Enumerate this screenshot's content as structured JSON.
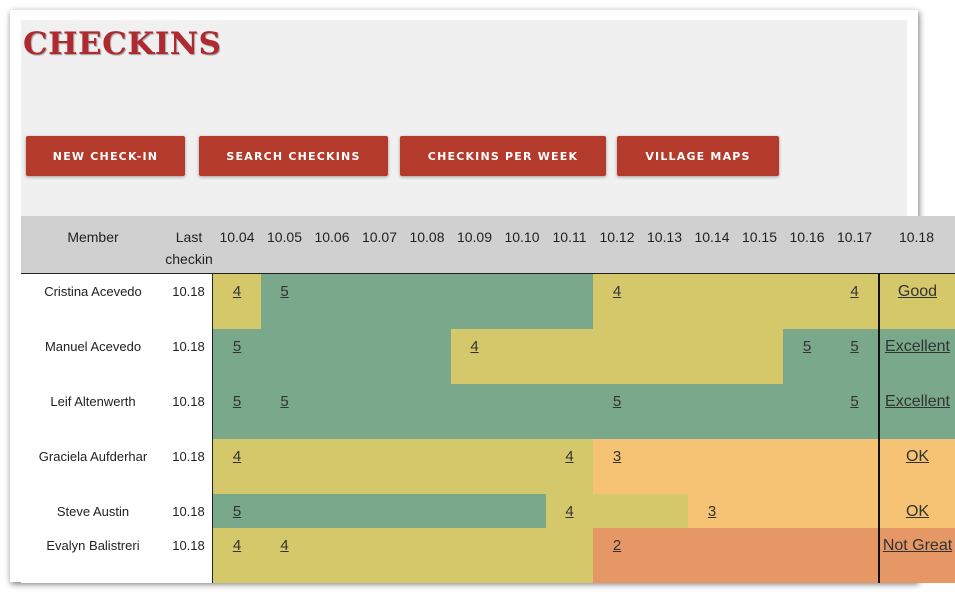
{
  "page": {
    "title": "CHECKINS"
  },
  "buttons": {
    "new_checkin": "NEW CHECK-IN",
    "search": "SEARCH CHECKINS",
    "per_week": "CHECKINS PER WEEK",
    "maps": "VILLAGE MAPS"
  },
  "colors": {
    "green": "#79a88a",
    "yellow": "#d4c86b",
    "orange": "#f6c274",
    "red": "#e69766",
    "brand": "#b43a2b"
  },
  "table": {
    "headers": [
      "Member",
      "Last checkin",
      "10.04",
      "10.05",
      "10.06",
      "10.07",
      "10.08",
      "10.09",
      "10.10",
      "10.11",
      "10.12",
      "10.13",
      "10.14",
      "10.15",
      "10.16",
      "10.17",
      "10.18"
    ],
    "rows": [
      {
        "member": "Cristina Acevedo",
        "last": "10.18",
        "colors": [
          "yellow",
          "green",
          "green",
          "green",
          "green",
          "green",
          "green",
          "green",
          "yellow",
          "yellow",
          "yellow",
          "yellow",
          "yellow",
          "yellow"
        ],
        "values": [
          "4",
          "5",
          "",
          "",
          "",
          "",
          "",
          "",
          "4",
          "",
          "",
          "",
          "",
          "4"
        ],
        "status": "Good",
        "status_color": "yellow"
      },
      {
        "member": "Manuel Acevedo",
        "last": "10.18",
        "colors": [
          "green",
          "green",
          "green",
          "green",
          "green",
          "yellow",
          "yellow",
          "yellow",
          "yellow",
          "yellow",
          "yellow",
          "yellow",
          "green",
          "green"
        ],
        "values": [
          "5",
          "",
          "",
          "",
          "",
          "4",
          "",
          "",
          "",
          "",
          "",
          "",
          "5",
          "5"
        ],
        "status": "Excellent",
        "status_color": "green"
      },
      {
        "member": "Leif Altenwerth",
        "last": "10.18",
        "colors": [
          "green",
          "green",
          "green",
          "green",
          "green",
          "green",
          "green",
          "green",
          "green",
          "green",
          "green",
          "green",
          "green",
          "green"
        ],
        "values": [
          "5",
          "5",
          "",
          "",
          "",
          "",
          "",
          "",
          "5",
          "",
          "",
          "",
          "",
          "5"
        ],
        "status": "Excellent",
        "status_color": "green"
      },
      {
        "member": "Graciela Aufderhar",
        "last": "10.18",
        "colors": [
          "yellow",
          "yellow",
          "yellow",
          "yellow",
          "yellow",
          "yellow",
          "yellow",
          "yellow",
          "orange",
          "orange",
          "orange",
          "orange",
          "orange",
          "orange"
        ],
        "values": [
          "4",
          "",
          "",
          "",
          "",
          "",
          "",
          "4",
          "3",
          "",
          "",
          "",
          "",
          ""
        ],
        "status": "OK",
        "status_color": "orange"
      },
      {
        "member": "Steve Austin",
        "last": "10.18",
        "colors": [
          "green",
          "green",
          "green",
          "green",
          "green",
          "green",
          "green",
          "yellow",
          "yellow",
          "yellow",
          "orange",
          "orange",
          "orange",
          "orange"
        ],
        "values": [
          "5",
          "",
          "",
          "",
          "",
          "",
          "",
          "4",
          "",
          "",
          "3",
          "",
          "",
          ""
        ],
        "status": "OK",
        "status_color": "orange"
      },
      {
        "member": "Evalyn Balistreri",
        "last": "10.18",
        "colors": [
          "yellow",
          "yellow",
          "yellow",
          "yellow",
          "yellow",
          "yellow",
          "yellow",
          "yellow",
          "red",
          "red",
          "red",
          "red",
          "red",
          "red"
        ],
        "values": [
          "4",
          "4",
          "",
          "",
          "",
          "",
          "",
          "",
          "2",
          "",
          "",
          "",
          "",
          ""
        ],
        "status": "Not Great",
        "status_color": "red"
      }
    ]
  }
}
